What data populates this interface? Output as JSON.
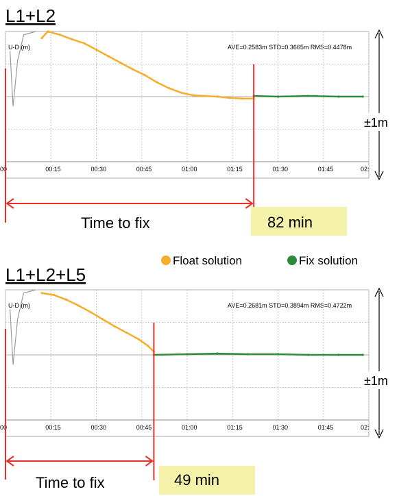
{
  "legend": {
    "items": [
      {
        "label": "Float solution",
        "color": "#f5ad2c"
      },
      {
        "label": "Fix solution",
        "color": "#2e8b3a"
      }
    ]
  },
  "chart_data": [
    {
      "type": "line",
      "title": "L1+L2",
      "ylabel": "U-D (m)",
      "stats": "AVE=0.2583m STD=0.3665m RMS=0.4478m",
      "x_ticks": [
        "00",
        "00:15",
        "00:30",
        "00:45",
        "01:00",
        "01:15",
        "01:30",
        "01:45",
        "02:"
      ],
      "xlim": [
        0,
        120
      ],
      "ylim": [
        -1,
        1
      ],
      "range_label": "±1m",
      "time_to_fix_label": "Time to fix",
      "time_to_fix_value": "82 min",
      "fix_time": 82,
      "series": [
        {
          "name": "Float solution",
          "color": "#f5ad2c",
          "points": [
            [
              12,
              0.9
            ],
            [
              14,
              1.0
            ],
            [
              18,
              0.95
            ],
            [
              22,
              0.88
            ],
            [
              26,
              0.82
            ],
            [
              30,
              0.72
            ],
            [
              34,
              0.62
            ],
            [
              38,
              0.52
            ],
            [
              42,
              0.42
            ],
            [
              46,
              0.33
            ],
            [
              50,
              0.22
            ],
            [
              54,
              0.13
            ],
            [
              58,
              0.06
            ],
            [
              62,
              0.02
            ],
            [
              66,
              0.01
            ],
            [
              70,
              0.0
            ],
            [
              74,
              -0.02
            ],
            [
              78,
              -0.03
            ],
            [
              82,
              -0.03
            ]
          ]
        },
        {
          "name": "Fix solution",
          "color": "#2e8b3a",
          "points": [
            [
              82,
              0.01
            ],
            [
              90,
              0.0
            ],
            [
              100,
              0.01
            ],
            [
              110,
              0.0
            ],
            [
              118,
              0.0
            ]
          ]
        }
      ]
    },
    {
      "type": "line",
      "title": "L1+L2+L5",
      "ylabel": "U-D (m)",
      "stats": "AVE=0.2681m STD=0.3894m RMS=0.4722m",
      "x_ticks": [
        "00",
        "00:15",
        "00:30",
        "00:45",
        "01:00",
        "01:15",
        "01:30",
        "01:45",
        "02:"
      ],
      "xlim": [
        0,
        120
      ],
      "ylim": [
        -1,
        1
      ],
      "range_label": "±1m",
      "time_to_fix_label": "Time to fix",
      "time_to_fix_value": "49 min",
      "fix_time": 49,
      "series": [
        {
          "name": "Float solution",
          "color": "#f5ad2c",
          "points": [
            [
              12,
              0.95
            ],
            [
              16,
              0.92
            ],
            [
              20,
              0.85
            ],
            [
              24,
              0.76
            ],
            [
              28,
              0.66
            ],
            [
              32,
              0.55
            ],
            [
              36,
              0.44
            ],
            [
              40,
              0.34
            ],
            [
              44,
              0.24
            ],
            [
              47,
              0.14
            ],
            [
              49,
              0.05
            ]
          ]
        },
        {
          "name": "Fix solution",
          "color": "#2e8b3a",
          "points": [
            [
              49,
              0.0
            ],
            [
              60,
              0.01
            ],
            [
              70,
              0.02
            ],
            [
              80,
              0.01
            ],
            [
              90,
              0.01
            ],
            [
              100,
              0.0
            ],
            [
              110,
              0.0
            ],
            [
              118,
              0.0
            ]
          ]
        }
      ]
    }
  ]
}
